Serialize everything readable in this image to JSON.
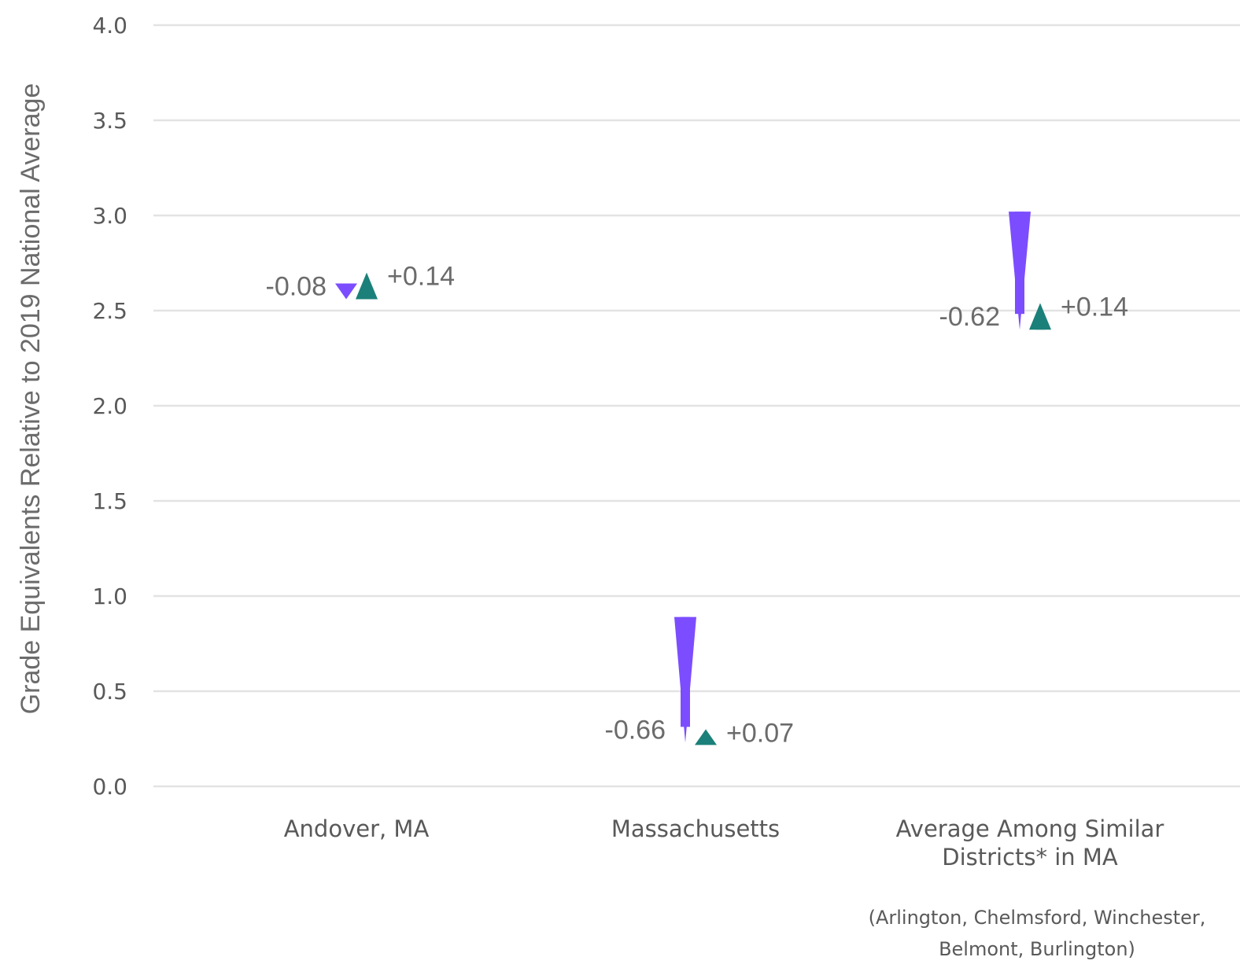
{
  "chart_data": {
    "type": "arrow",
    "title": "",
    "xlabel": "",
    "ylabel": "Grade Equivalents Relative to 2019 National Average",
    "ylim": [
      0,
      4
    ],
    "yticks": [
      "0.0",
      "0.5",
      "1.0",
      "1.5",
      "2.0",
      "2.5",
      "3.0",
      "3.5",
      "4.0"
    ],
    "grid": true,
    "categories": [
      {
        "label_lines": [
          "Andover, MA"
        ],
        "note_lines": []
      },
      {
        "label_lines": [
          "Massachusetts"
        ],
        "note_lines": []
      },
      {
        "label_lines": [
          "Average Among Similar",
          "Districts* in MA"
        ],
        "note_lines": [
          "(Arlington, Chelmsford, Winchester,",
          "Belmont, Burlington)"
        ]
      }
    ],
    "series": [
      {
        "colors": {
          "decline": "#7c4dff",
          "recovery": "#1b8079"
        },
        "points": [
          {
            "start": 2.64,
            "decline": -0.08,
            "decline_label": "-0.08",
            "recovery": 0.14,
            "recovery_label": "+0.14"
          },
          {
            "start": 0.89,
            "decline": -0.66,
            "decline_label": "-0.66",
            "recovery": 0.07,
            "recovery_label": "+0.07"
          },
          {
            "start": 3.02,
            "decline": -0.62,
            "decline_label": "-0.62",
            "recovery": 0.14,
            "recovery_label": "+0.14"
          }
        ]
      }
    ]
  }
}
